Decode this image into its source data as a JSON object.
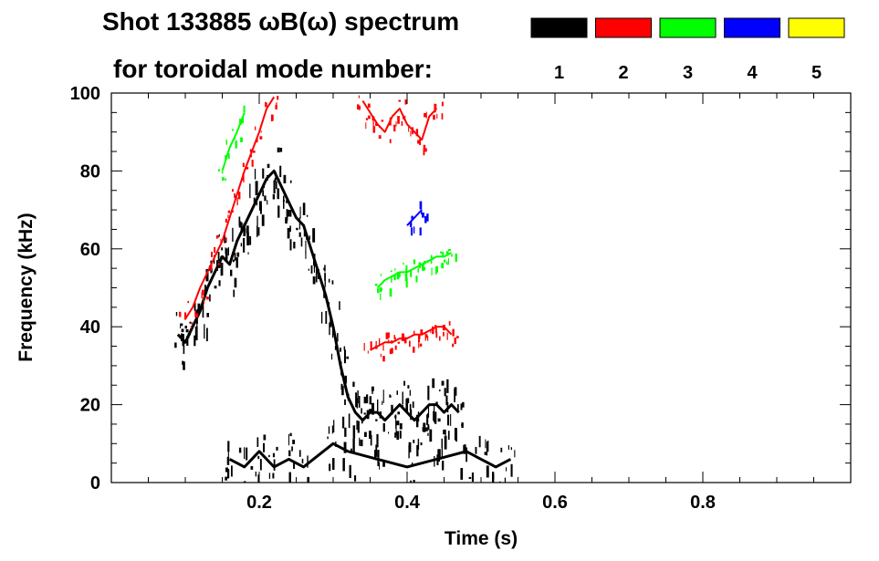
{
  "chart_data": {
    "type": "heatmap",
    "title": "Shot 133885 ωB(ω) spectrum",
    "subtitle": "for toroidal mode number:",
    "xlabel": "Time (s)",
    "ylabel": "Frequency (kHz)",
    "xlim": [
      0.0,
      1.0
    ],
    "ylim": [
      0,
      100
    ],
    "x_ticks": [
      0.2,
      0.4,
      0.6,
      0.8
    ],
    "x_tick_labels": [
      "0.2",
      "0.4",
      "0.6",
      "0.8"
    ],
    "y_ticks": [
      0,
      20,
      40,
      60,
      80,
      100
    ],
    "y_tick_labels": [
      "0",
      "20",
      "40",
      "60",
      "80",
      "100"
    ],
    "grid": false,
    "legend_placement": "top-right",
    "legend": [
      {
        "mode": "1",
        "color": "#000000"
      },
      {
        "mode": "2",
        "color": "#ff0000"
      },
      {
        "mode": "3",
        "color": "#00ff00"
      },
      {
        "mode": "4",
        "color": "#0000ff"
      },
      {
        "mode": "5",
        "color": "#ffff00"
      }
    ],
    "features": [
      {
        "mode": "1",
        "color": "#000000",
        "points": [
          [
            0.09,
            38
          ],
          [
            0.1,
            36
          ],
          [
            0.11,
            40
          ],
          [
            0.12,
            44
          ],
          [
            0.13,
            50
          ],
          [
            0.14,
            54
          ],
          [
            0.15,
            58
          ],
          [
            0.16,
            56
          ],
          [
            0.17,
            62
          ],
          [
            0.18,
            66
          ],
          [
            0.19,
            70
          ],
          [
            0.2,
            74
          ],
          [
            0.21,
            78
          ],
          [
            0.22,
            80
          ],
          [
            0.23,
            76
          ],
          [
            0.24,
            72
          ],
          [
            0.25,
            68
          ],
          [
            0.26,
            66
          ],
          [
            0.27,
            60
          ],
          [
            0.28,
            54
          ],
          [
            0.29,
            48
          ],
          [
            0.3,
            40
          ],
          [
            0.31,
            30
          ],
          [
            0.32,
            22
          ],
          [
            0.33,
            18
          ],
          [
            0.34,
            16
          ],
          [
            0.35,
            18
          ],
          [
            0.36,
            18
          ],
          [
            0.37,
            16
          ],
          [
            0.38,
            18
          ],
          [
            0.39,
            20
          ],
          [
            0.4,
            18
          ],
          [
            0.41,
            16
          ],
          [
            0.42,
            18
          ],
          [
            0.43,
            20
          ],
          [
            0.44,
            20
          ],
          [
            0.45,
            18
          ],
          [
            0.46,
            20
          ],
          [
            0.47,
            18
          ]
        ]
      },
      {
        "mode": "1",
        "color": "#000000",
        "points": [
          [
            0.16,
            6
          ],
          [
            0.18,
            4
          ],
          [
            0.2,
            8
          ],
          [
            0.22,
            4
          ],
          [
            0.24,
            6
          ],
          [
            0.26,
            4
          ],
          [
            0.3,
            10
          ],
          [
            0.32,
            8
          ],
          [
            0.36,
            6
          ],
          [
            0.4,
            4
          ],
          [
            0.44,
            6
          ],
          [
            0.48,
            8
          ],
          [
            0.5,
            6
          ],
          [
            0.52,
            4
          ],
          [
            0.54,
            6
          ]
        ]
      },
      {
        "mode": "2",
        "color": "#ff0000",
        "points": [
          [
            0.1,
            42
          ],
          [
            0.11,
            45
          ],
          [
            0.12,
            50
          ],
          [
            0.14,
            58
          ],
          [
            0.15,
            62
          ],
          [
            0.16,
            68
          ],
          [
            0.17,
            74
          ],
          [
            0.18,
            80
          ],
          [
            0.19,
            85
          ],
          [
            0.2,
            90
          ],
          [
            0.21,
            96
          ],
          [
            0.22,
            99
          ]
        ]
      },
      {
        "mode": "2",
        "color": "#ff0000",
        "points": [
          [
            0.35,
            34
          ],
          [
            0.36,
            35
          ],
          [
            0.37,
            36
          ],
          [
            0.38,
            36
          ],
          [
            0.39,
            37
          ],
          [
            0.4,
            37
          ],
          [
            0.41,
            38
          ],
          [
            0.42,
            38
          ],
          [
            0.43,
            39
          ],
          [
            0.44,
            40
          ],
          [
            0.45,
            40
          ],
          [
            0.46,
            38
          ]
        ]
      },
      {
        "mode": "2",
        "color": "#ff0000",
        "points": [
          [
            0.34,
            98
          ],
          [
            0.35,
            95
          ],
          [
            0.36,
            92
          ],
          [
            0.37,
            90
          ],
          [
            0.38,
            94
          ],
          [
            0.39,
            96
          ],
          [
            0.4,
            92
          ],
          [
            0.41,
            90
          ],
          [
            0.42,
            88
          ],
          [
            0.43,
            94
          ],
          [
            0.44,
            96
          ]
        ]
      },
      {
        "mode": "3",
        "color": "#00ff00",
        "points": [
          [
            0.15,
            80
          ],
          [
            0.16,
            86
          ],
          [
            0.17,
            90
          ],
          [
            0.18,
            95
          ]
        ]
      },
      {
        "mode": "3",
        "color": "#00ff00",
        "points": [
          [
            0.36,
            50
          ],
          [
            0.37,
            52
          ],
          [
            0.38,
            53
          ],
          [
            0.39,
            54
          ],
          [
            0.4,
            54
          ],
          [
            0.41,
            55
          ],
          [
            0.42,
            56
          ],
          [
            0.43,
            57
          ],
          [
            0.44,
            58
          ],
          [
            0.45,
            58
          ],
          [
            0.46,
            59
          ]
        ]
      },
      {
        "mode": "4",
        "color": "#0000ff",
        "points": [
          [
            0.4,
            66
          ],
          [
            0.41,
            68
          ],
          [
            0.42,
            70
          ]
        ]
      }
    ]
  }
}
